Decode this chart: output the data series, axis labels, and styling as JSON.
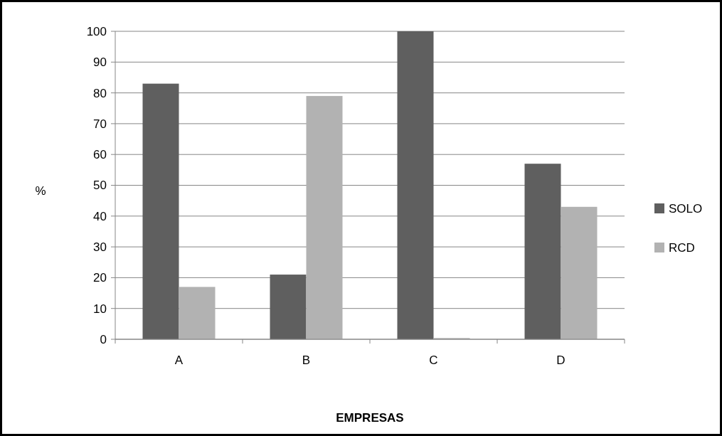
{
  "chart_data": {
    "type": "bar",
    "xlabel": "EMPRESAS",
    "ylabel": "%",
    "categories": [
      "A",
      "B",
      "C",
      "D"
    ],
    "series": [
      {
        "name": "SOLO",
        "color": "#5f5f5f",
        "values": [
          83,
          21,
          100,
          57
        ]
      },
      {
        "name": "RCD",
        "color": "#b2b2b2",
        "values": [
          17,
          79,
          0.4,
          43
        ]
      }
    ],
    "ylim": [
      0,
      100
    ],
    "yticks": [
      0,
      10,
      20,
      30,
      40,
      50,
      60,
      70,
      80,
      90,
      100
    ],
    "grid": "y",
    "legend": "right"
  }
}
